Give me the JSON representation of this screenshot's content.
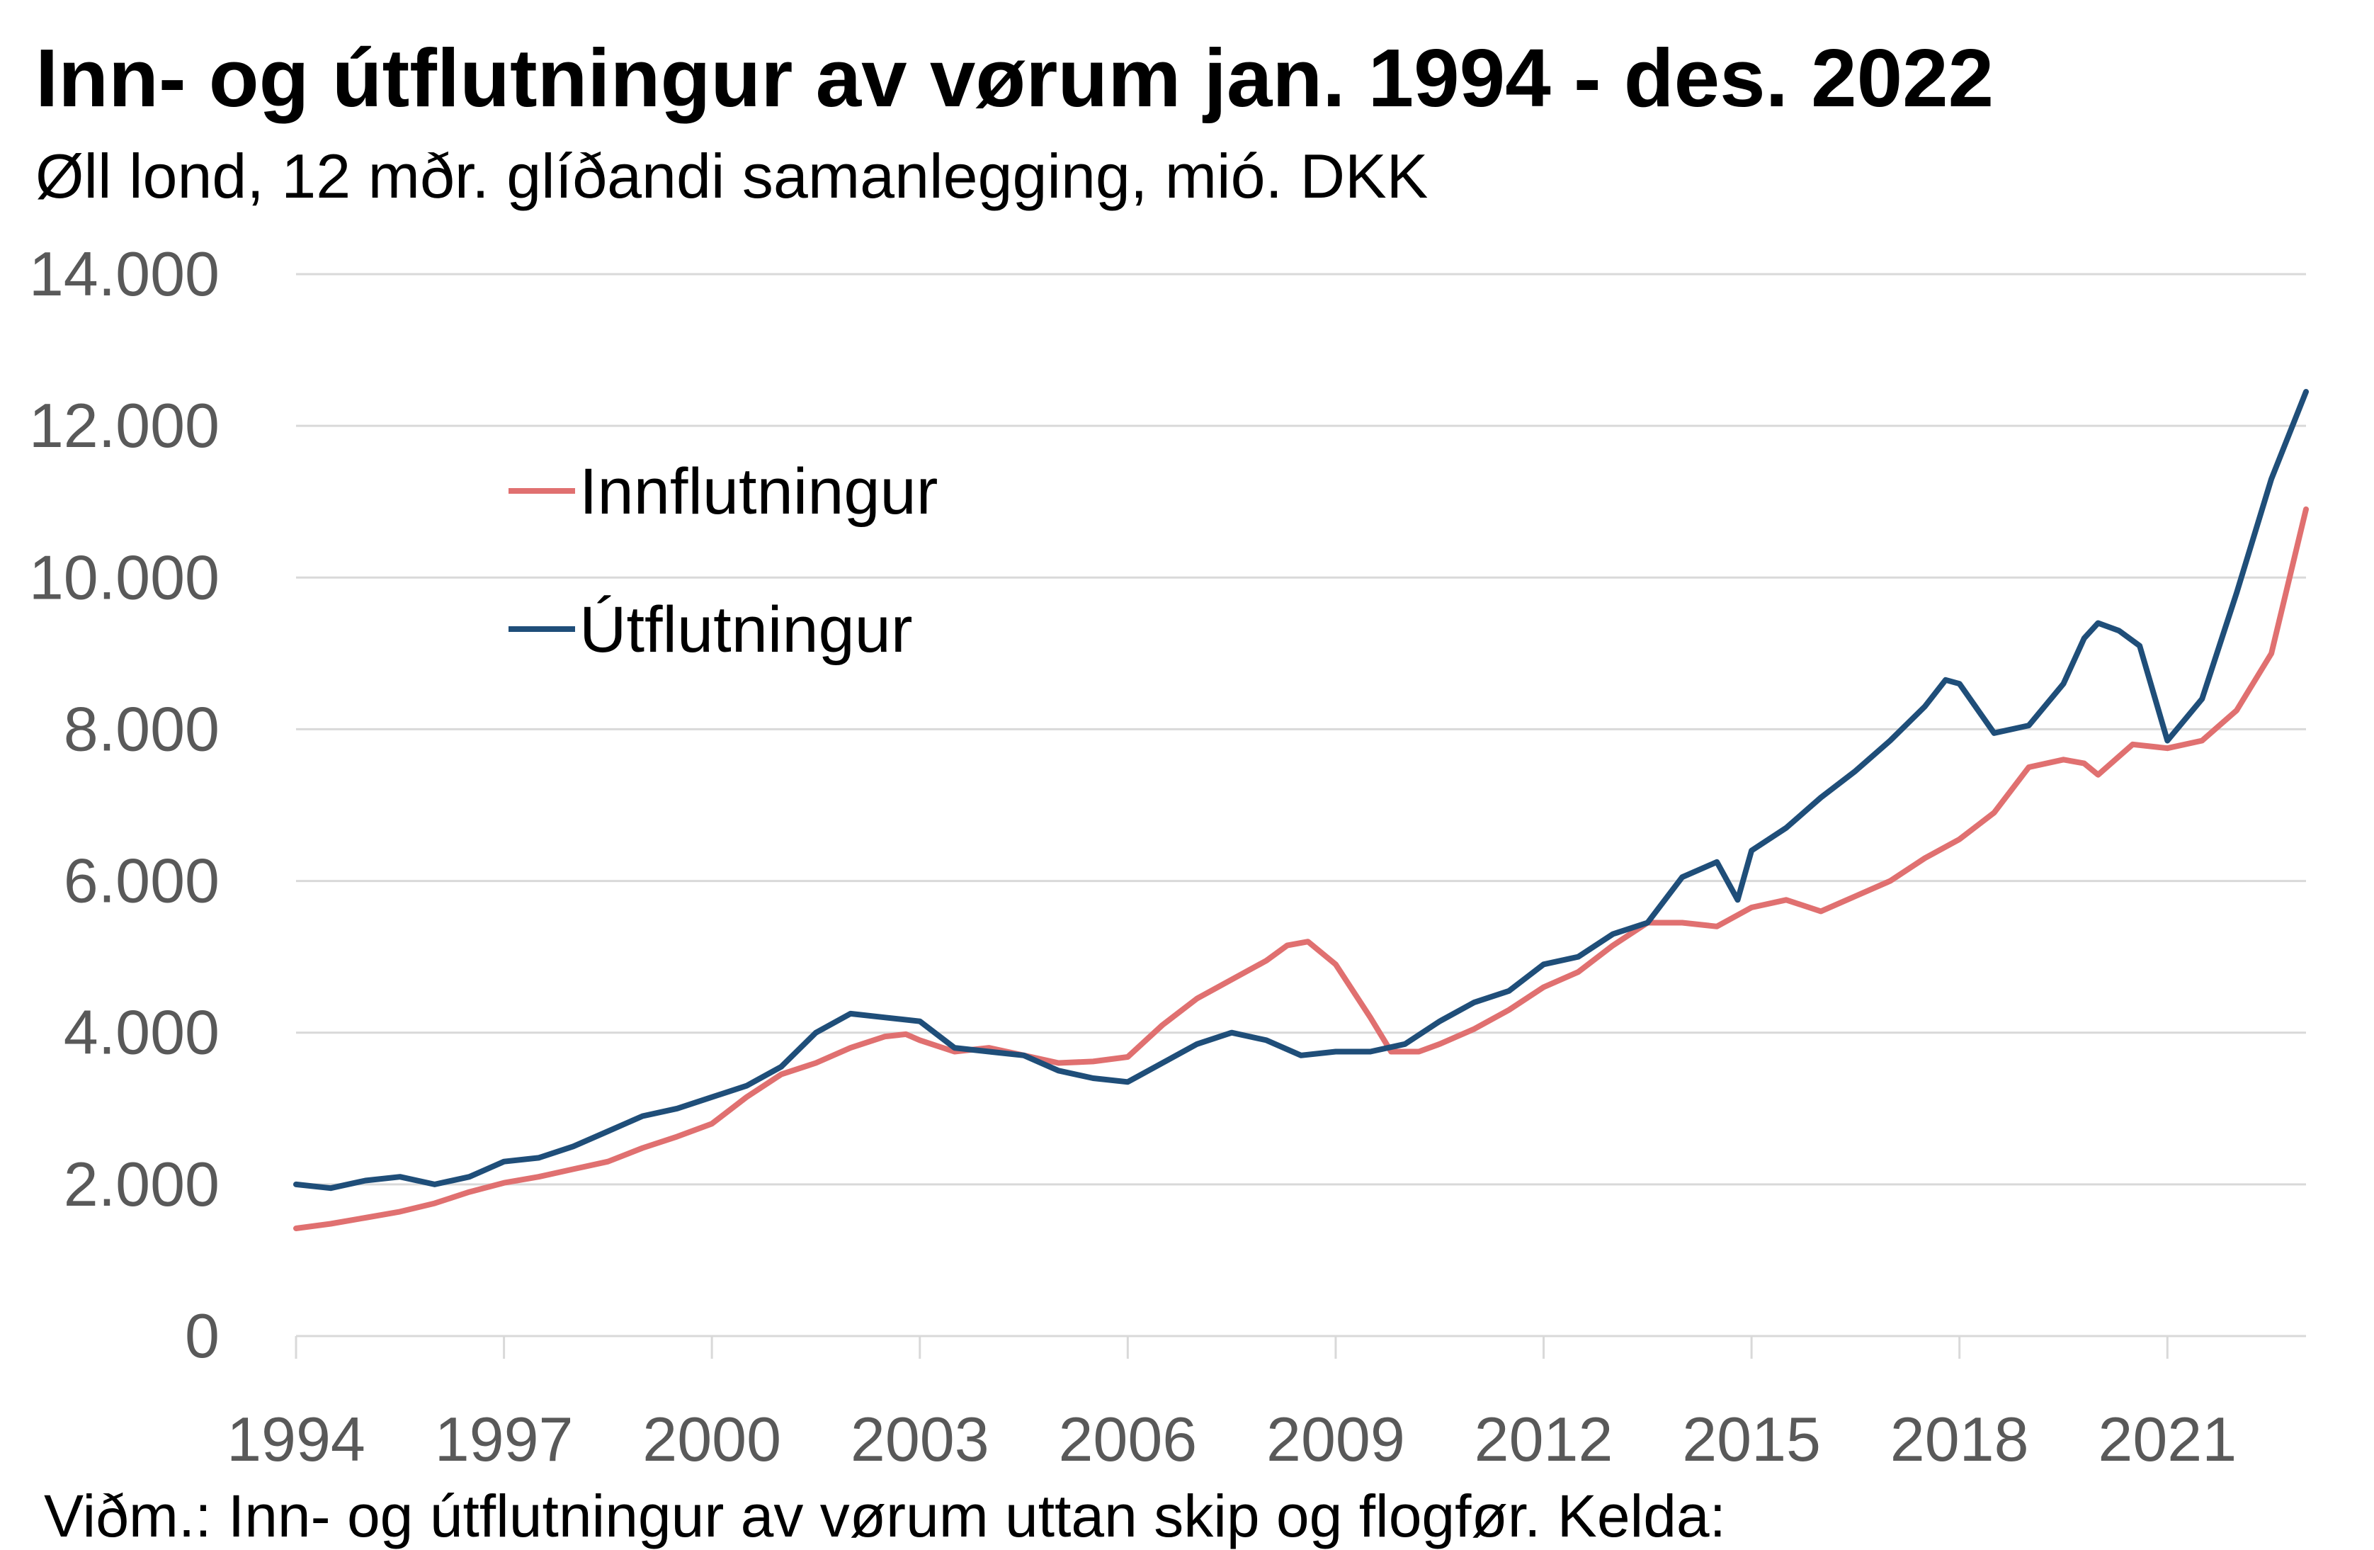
{
  "chart_data": {
    "type": "line",
    "title": "Inn- og útflutningur av vørum jan. 1994 - des. 2022",
    "subtitle": "Øll lond, 12 mðr. glíðandi samanlegging, mió. DKK",
    "note": "Viðm.: Inn- og útflutningur av vørum uttan skip og flogfør. Kelda:",
    "xlim": [
      1994,
      2023
    ],
    "ylim": [
      0,
      14000
    ],
    "grid": true,
    "legend_position": "upper-left",
    "x_ticks": [
      "1994",
      "1997",
      "2000",
      "2003",
      "2006",
      "2009",
      "2012",
      "2015",
      "2018",
      "2021"
    ],
    "y_ticks": [
      "0",
      "2.000",
      "4.000",
      "6.000",
      "8.000",
      "10.000",
      "12.000",
      "14.000"
    ],
    "series": [
      {
        "name": "Innflutningur",
        "color": "#E07070",
        "x": [
          1994.0,
          1994.5,
          1995.0,
          1995.5,
          1996.0,
          1996.5,
          1997.0,
          1997.5,
          1998.0,
          1998.5,
          1999.0,
          1999.5,
          2000.0,
          2000.5,
          2001.0,
          2001.5,
          2002.0,
          2002.5,
          2002.8,
          2003.0,
          2003.5,
          2004.0,
          2004.5,
          2005.0,
          2005.5,
          2006.0,
          2006.5,
          2007.0,
          2007.5,
          2008.0,
          2008.3,
          2008.6,
          2009.0,
          2009.5,
          2009.8,
          2010.2,
          2010.5,
          2011.0,
          2011.5,
          2012.0,
          2012.5,
          2013.0,
          2013.5,
          2014.0,
          2014.5,
          2015.0,
          2015.5,
          2016.0,
          2016.5,
          2017.0,
          2017.5,
          2018.0,
          2018.5,
          2019.0,
          2019.5,
          2019.8,
          2020.0,
          2020.5,
          2021.0,
          2021.5,
          2022.0,
          2022.5,
          2023.0
        ],
        "values": [
          1420,
          1480,
          1560,
          1640,
          1750,
          1900,
          2020,
          2100,
          2200,
          2300,
          2480,
          2630,
          2800,
          3150,
          3450,
          3600,
          3800,
          3950,
          3980,
          3900,
          3750,
          3800,
          3700,
          3600,
          3620,
          3680,
          4100,
          4450,
          4700,
          4950,
          5150,
          5200,
          4900,
          4200,
          3750,
          3750,
          3850,
          4050,
          4300,
          4600,
          4800,
          5150,
          5450,
          5450,
          5400,
          5650,
          5750,
          5600,
          5800,
          6000,
          6300,
          6550,
          6900,
          7500,
          7600,
          7550,
          7400,
          7800,
          7750,
          7850,
          8250,
          9000,
          10900
        ]
      },
      {
        "name": "Útflutningur",
        "color": "#1F4E79",
        "x": [
          1994.0,
          1994.5,
          1995.0,
          1995.5,
          1996.0,
          1996.5,
          1997.0,
          1997.5,
          1998.0,
          1998.5,
          1999.0,
          1999.5,
          2000.0,
          2000.5,
          2001.0,
          2001.5,
          2002.0,
          2002.5,
          2003.0,
          2003.5,
          2004.0,
          2004.5,
          2005.0,
          2005.5,
          2006.0,
          2006.5,
          2007.0,
          2007.5,
          2008.0,
          2008.5,
          2009.0,
          2009.5,
          2010.0,
          2010.5,
          2011.0,
          2011.5,
          2012.0,
          2012.5,
          2013.0,
          2013.5,
          2014.0,
          2014.5,
          2014.8,
          2015.0,
          2015.5,
          2016.0,
          2016.5,
          2017.0,
          2017.5,
          2017.8,
          2018.0,
          2018.5,
          2019.0,
          2019.5,
          2019.8,
          2020.0,
          2020.3,
          2020.6,
          2021.0,
          2021.5,
          2022.0,
          2022.5,
          2023.0
        ],
        "values": [
          2000,
          1950,
          2050,
          2100,
          2000,
          2100,
          2300,
          2350,
          2500,
          2700,
          2900,
          3000,
          3150,
          3300,
          3550,
          4000,
          4250,
          4200,
          4150,
          3800,
          3750,
          3700,
          3500,
          3400,
          3350,
          3600,
          3850,
          4000,
          3900,
          3700,
          3750,
          3750,
          3850,
          4150,
          4400,
          4550,
          4900,
          5000,
          5300,
          5450,
          6050,
          6250,
          5750,
          6400,
          6700,
          7100,
          7450,
          7850,
          8300,
          8650,
          8600,
          7950,
          8050,
          8600,
          9200,
          9400,
          9300,
          9100,
          7850,
          8400,
          9800,
          11300,
          12450
        ]
      }
    ]
  }
}
